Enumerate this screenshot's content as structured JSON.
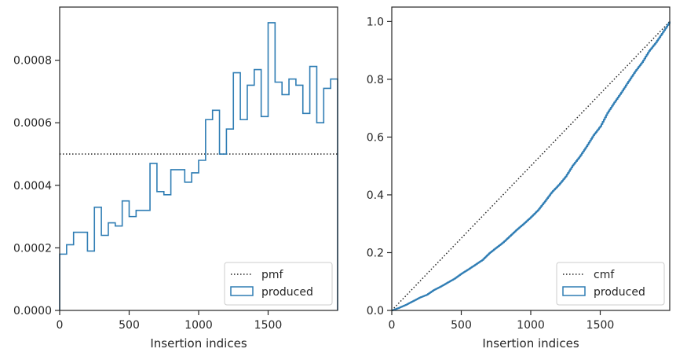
{
  "chart_data": [
    {
      "type": "histogram-step",
      "xlabel": "Insertion indices",
      "ylabel": "",
      "xlim": [
        0,
        2000
      ],
      "ylim": [
        0,
        0.00097
      ],
      "xticks": [
        0,
        500,
        1000,
        1500
      ],
      "xtick_labels": [
        "0",
        "500",
        "1000",
        "1500"
      ],
      "yticks": [
        0,
        0.0002,
        0.0004,
        0.0006,
        0.0008
      ],
      "ytick_labels": [
        "0.0000",
        "0.0002",
        "0.0004",
        "0.0006",
        "0.0008"
      ],
      "legend_position": "lower-right",
      "legend": [
        {
          "label": "pmf",
          "style": "dotted-line"
        },
        {
          "label": "produced",
          "style": "outlined-box"
        }
      ],
      "reference_line": {
        "name": "pmf",
        "y": 0.0005
      },
      "series": [
        {
          "name": "produced",
          "color": "#2f7db4",
          "bin_edges": [
            0,
            50,
            100,
            150,
            200,
            250,
            300,
            350,
            400,
            450,
            500,
            550,
            600,
            650,
            700,
            750,
            800,
            850,
            900,
            950,
            1000,
            1050,
            1100,
            1150,
            1200,
            1250,
            1300,
            1350,
            1400,
            1450,
            1500,
            1550,
            1600,
            1650,
            1700,
            1750,
            1800,
            1850,
            1900,
            1950,
            2000
          ],
          "values": [
            0.00018,
            0.00021,
            0.00025,
            0.00025,
            0.00019,
            0.00033,
            0.00024,
            0.00028,
            0.00027,
            0.00035,
            0.0003,
            0.00032,
            0.00032,
            0.00047,
            0.00038,
            0.00037,
            0.00045,
            0.00045,
            0.00041,
            0.00044,
            0.00048,
            0.00061,
            0.00064,
            0.0005,
            0.00058,
            0.00076,
            0.00061,
            0.00072,
            0.00077,
            0.00062,
            0.00092,
            0.00073,
            0.00069,
            0.00074,
            0.00072,
            0.00063,
            0.00078,
            0.0006,
            0.00071,
            0.00074
          ]
        }
      ]
    },
    {
      "type": "line",
      "xlabel": "Insertion indices",
      "ylabel": "",
      "xlim": [
        0,
        2000
      ],
      "ylim": [
        0,
        1.05
      ],
      "xticks": [
        0,
        500,
        1000,
        1500
      ],
      "xtick_labels": [
        "0",
        "500",
        "1000",
        "1500"
      ],
      "yticks": [
        0,
        0.2,
        0.4,
        0.6,
        0.8,
        1.0
      ],
      "ytick_labels": [
        "0.0",
        "0.2",
        "0.4",
        "0.6",
        "0.8",
        "1.0"
      ],
      "legend_position": "lower-right",
      "legend": [
        {
          "label": "cmf",
          "style": "dotted-line"
        },
        {
          "label": "produced",
          "style": "outlined-box"
        }
      ],
      "reference_line": {
        "name": "cmf",
        "x": [
          0,
          2000
        ],
        "y": [
          0,
          1.0
        ]
      },
      "series": [
        {
          "name": "produced",
          "color": "#2f7db4",
          "x": [
            0,
            50,
            100,
            150,
            200,
            250,
            300,
            350,
            400,
            450,
            500,
            550,
            600,
            650,
            700,
            750,
            800,
            850,
            900,
            950,
            1000,
            1050,
            1100,
            1150,
            1200,
            1250,
            1300,
            1350,
            1400,
            1450,
            1500,
            1550,
            1600,
            1650,
            1700,
            1750,
            1800,
            1850,
            1900,
            1950,
            2000
          ],
          "y": [
            0,
            0.009,
            0.0195,
            0.032,
            0.0445,
            0.054,
            0.0705,
            0.0825,
            0.0965,
            0.11,
            0.1275,
            0.1425,
            0.1585,
            0.1745,
            0.198,
            0.217,
            0.2355,
            0.258,
            0.2805,
            0.301,
            0.323,
            0.347,
            0.3775,
            0.4095,
            0.4345,
            0.4635,
            0.5015,
            0.532,
            0.568,
            0.6065,
            0.6375,
            0.6835,
            0.72,
            0.7545,
            0.7915,
            0.8275,
            0.859,
            0.898,
            0.928,
            0.9635,
            1.0
          ]
        }
      ]
    }
  ]
}
